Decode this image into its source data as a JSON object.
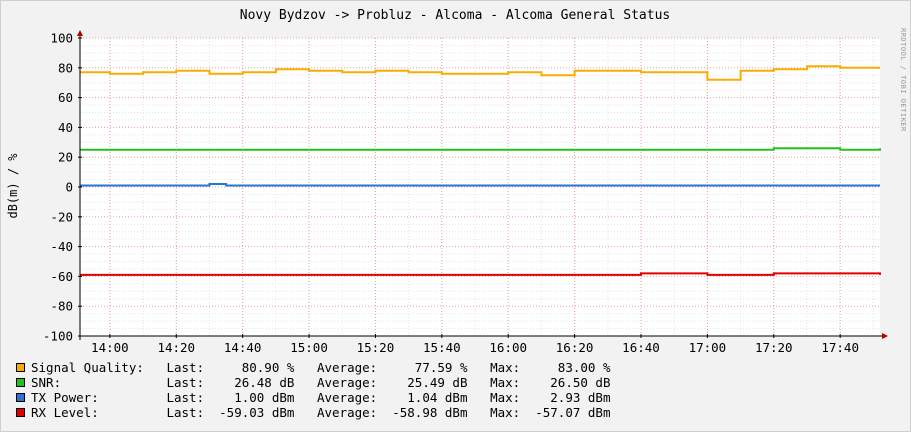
{
  "chart_data": {
    "type": "line",
    "title": "Novy Bydzov -> Probluz - Alcoma - Alcoma General Status",
    "ylabel": "dB(m) / %",
    "xlabel": "",
    "watermark": "RRDTOOL / TOBI OETIKER",
    "ylim": [
      -100,
      100
    ],
    "yticks": [
      100,
      80,
      60,
      40,
      20,
      0,
      -20,
      -40,
      -60,
      -80,
      -100
    ],
    "ytick_labels": [
      "100",
      "80",
      "60",
      "40",
      "20",
      "0",
      "-20",
      "-40",
      "-60",
      "-80",
      "-100"
    ],
    "xlim": [
      "13:51",
      "17:52"
    ],
    "xticks": [
      "14:00",
      "14:20",
      "14:40",
      "15:00",
      "15:20",
      "15:40",
      "16:00",
      "16:20",
      "16:40",
      "17:00",
      "17:20",
      "17:40"
    ],
    "grid": true,
    "colors": {
      "background": "#f2f2f2",
      "canvas": "#ffffff",
      "major_grid": "#e8a0a0",
      "minor_grid": "#e4e4e4",
      "axis": "#000000",
      "arrow": "#b00000"
    },
    "series": [
      {
        "name": "Signal Quality:",
        "color": "#f7ad00",
        "x": [
          "13:51",
          "14:00",
          "14:10",
          "14:20",
          "14:30",
          "14:40",
          "14:50",
          "15:00",
          "15:10",
          "15:20",
          "15:30",
          "15:40",
          "15:50",
          "16:00",
          "16:10",
          "16:20",
          "16:30",
          "16:40",
          "16:50",
          "17:00",
          "17:10",
          "17:20",
          "17:30",
          "17:40",
          "17:52"
        ],
        "values": [
          77,
          76,
          77,
          78,
          76,
          77,
          79,
          78,
          77,
          78,
          77,
          76,
          76,
          77,
          75,
          78,
          78,
          77,
          77,
          72,
          78,
          79,
          81,
          80,
          80
        ],
        "last": "80.90 %",
        "average": "77.59 %",
        "max": "83.00 %"
      },
      {
        "name": "SNR:",
        "color": "#21c121",
        "x": [
          "13:51",
          "14:00",
          "14:20",
          "14:40",
          "15:00",
          "15:20",
          "15:40",
          "16:00",
          "16:20",
          "16:40",
          "17:00",
          "17:20",
          "17:40",
          "17:52"
        ],
        "values": [
          25,
          25,
          25,
          25,
          25,
          25,
          25,
          25,
          25,
          25,
          25,
          26,
          25,
          26
        ],
        "last": "26.48 dB",
        "average": "25.49 dB",
        "max": "26.50 dB"
      },
      {
        "name": "TX Power:",
        "color": "#2a74d2",
        "x": [
          "13:51",
          "14:20",
          "14:30",
          "14:35",
          "14:40",
          "15:00",
          "16:00",
          "17:00",
          "17:52"
        ],
        "values": [
          1,
          1,
          2,
          1,
          1,
          1,
          1,
          1,
          1
        ],
        "last": "1.00 dBm",
        "average": "1.04 dBm",
        "max": "2.93 dBm"
      },
      {
        "name": "RX Level:",
        "color": "#e00000",
        "x": [
          "13:51",
          "14:30",
          "15:00",
          "16:00",
          "16:20",
          "16:40",
          "17:00",
          "17:20",
          "17:40",
          "17:52"
        ],
        "values": [
          -59,
          -59,
          -59,
          -59,
          -59,
          -58,
          -59,
          -58,
          -58,
          -59
        ],
        "last": "-59.03 dBm",
        "average": "-58.98 dBm",
        "max": "-57.07 dBm"
      }
    ]
  },
  "legend": {
    "last_label": "Last:",
    "average_label": "Average:",
    "max_label": "Max:"
  }
}
